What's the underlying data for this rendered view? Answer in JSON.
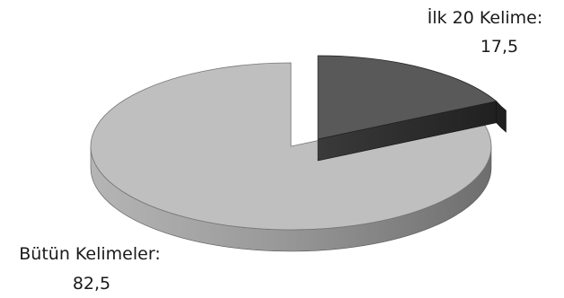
{
  "chart_data": {
    "type": "pie",
    "style": "3d-exploded",
    "slices": [
      {
        "category": "İlk 20 Kelime",
        "label": "İlk 20 Kelime:",
        "value": 17.5,
        "value_label": "17,5",
        "color": "#595959",
        "side_color": "#2b2b2b",
        "exploded": true
      },
      {
        "category": "Bütün Kelimeler",
        "label": "Bütün Kelimeler:",
        "value": 82.5,
        "value_label": "82,5",
        "color": "#bfbfbf",
        "side_color": "#8c8c8c",
        "exploded": false
      }
    ],
    "legend": "none"
  }
}
